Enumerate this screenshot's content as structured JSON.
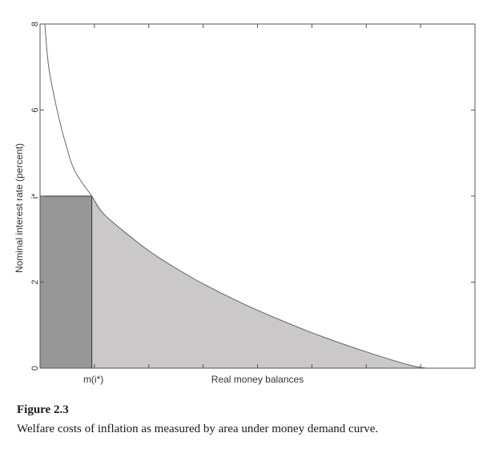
{
  "chart_data": {
    "type": "area",
    "xlabel": "Real money balances",
    "ylabel": "Nominal interest rate (percent)",
    "ylim": [
      0,
      8
    ],
    "y_ticks": [
      {
        "value": 0,
        "label": "0"
      },
      {
        "value": 2,
        "label": "2"
      },
      {
        "value": 4,
        "label": "i*"
      },
      {
        "value": 6,
        "label": "6"
      },
      {
        "value": 8,
        "label": "8"
      }
    ],
    "x_tick_labels": [
      {
        "label": "m(i*)"
      }
    ],
    "curve": {
      "name": "",
      "description_values": "money demand curve, decreasing convex",
      "points": [
        [
          0.011,
          8.0
        ],
        [
          0.02,
          7.0
        ],
        [
          0.04,
          5.96
        ],
        [
          0.06,
          5.18
        ],
        [
          0.08,
          4.58
        ],
        [
          0.119,
          4.0
        ],
        [
          0.15,
          3.55
        ],
        [
          0.25,
          2.73
        ],
        [
          0.35,
          2.1
        ],
        [
          0.45,
          1.58
        ],
        [
          0.55,
          1.13
        ],
        [
          0.65,
          0.73
        ],
        [
          0.75,
          0.38
        ],
        [
          0.85,
          0.07
        ],
        [
          0.89,
          0.0
        ]
      ]
    },
    "i_star": 4.0,
    "m_i_star": 0.119,
    "grid": false,
    "colors": {
      "dark_rect": "#979797",
      "light_area": "#cbc8c9",
      "curve": "#666666",
      "axes": "#555555"
    }
  },
  "caption": {
    "label": "Figure 2.3",
    "text": "Welfare costs of inflation as measured by area under money demand curve."
  }
}
